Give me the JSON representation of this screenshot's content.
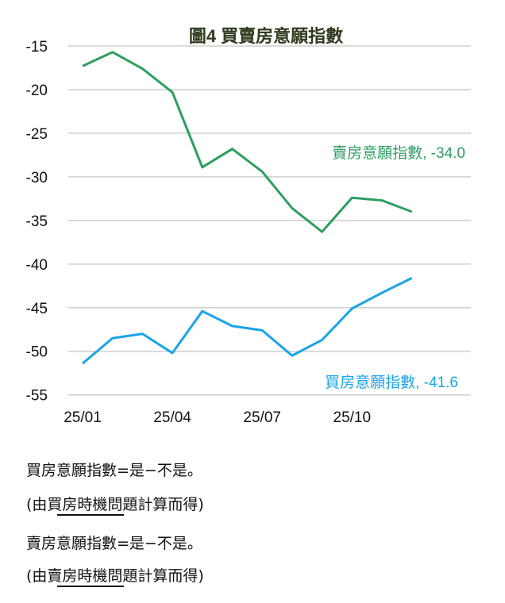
{
  "chart_data": {
    "type": "line",
    "title": "圖4  買賣房意願指數",
    "xlabel": "",
    "ylabel": "",
    "ylim": [
      -55,
      -15
    ],
    "yticks": [
      -15,
      -20,
      -25,
      -30,
      -35,
      -40,
      -45,
      -50,
      -55
    ],
    "x": [
      "25/01",
      "25/02",
      "25/03",
      "25/04",
      "25/05",
      "25/06",
      "25/07",
      "25/08",
      "25/09",
      "25/10",
      "25/11",
      "25/12"
    ],
    "xtick_labels": [
      "25/01",
      "25/04",
      "25/07",
      "25/10"
    ],
    "grid": true,
    "series": [
      {
        "name": "賣房意願指數",
        "label": "賣房意願指數, -34.0",
        "color": "#2e9e62",
        "values": [
          -17.3,
          -15.7,
          -17.6,
          -20.3,
          -28.9,
          -26.8,
          -29.4,
          -33.6,
          -36.3,
          -32.4,
          -32.7,
          -34.0
        ]
      },
      {
        "name": "買房意願指數",
        "label": "買房意願指數, -41.6",
        "color": "#1aa3e8",
        "values": [
          -51.4,
          -48.5,
          -48.0,
          -50.2,
          -45.4,
          -47.1,
          -47.6,
          -50.5,
          -48.7,
          -45.1,
          -43.3,
          -41.6
        ]
      }
    ]
  },
  "notes": [
    "買房意願指數=是−不是。",
    "(由買房時機問題計算而得)",
    "賣房意願指數=是−不是。",
    "(由賣房時機問題計算而得)"
  ]
}
